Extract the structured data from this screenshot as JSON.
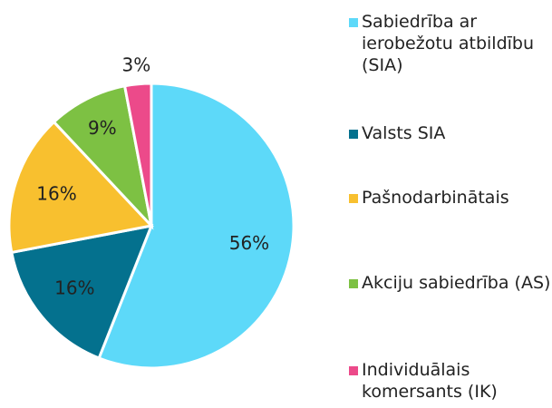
{
  "chart_data": {
    "type": "pie",
    "categories": [
      "Sabiedrība ar ierobežotu atbildību (SIA)",
      "Valsts SIA",
      "Pašnodarbinātais",
      "Akciju sabiedrība (AS)",
      "Individuālais komersants (IK)"
    ],
    "values": [
      56,
      16,
      16,
      9,
      3
    ],
    "value_labels": [
      "56%",
      "16%",
      "16%",
      "9%",
      "3%"
    ],
    "colors": [
      "#5dd9f9",
      "#04718e",
      "#f8c02f",
      "#7dc143",
      "#ec4a8a"
    ],
    "legend": "right"
  }
}
